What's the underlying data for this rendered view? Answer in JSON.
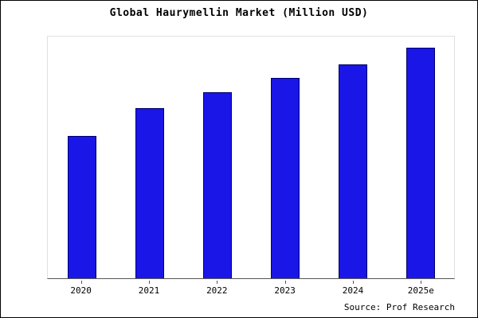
{
  "chart_data": {
    "type": "bar",
    "title": "Global Haurymellin Market (Million USD)",
    "categories": [
      "2020",
      "2021",
      "2022",
      "2023",
      "2024",
      "2025e"
    ],
    "values": [
      62,
      74,
      81,
      87,
      93,
      100
    ],
    "xlabel": "",
    "ylabel": "",
    "ylim": [
      0,
      105
    ],
    "grid": false,
    "legend_position": "none",
    "bar_fill_color": "#1a16e8",
    "bar_border_color": "#00006b"
  },
  "footer": {
    "source_text": "Source: Prof Research"
  }
}
